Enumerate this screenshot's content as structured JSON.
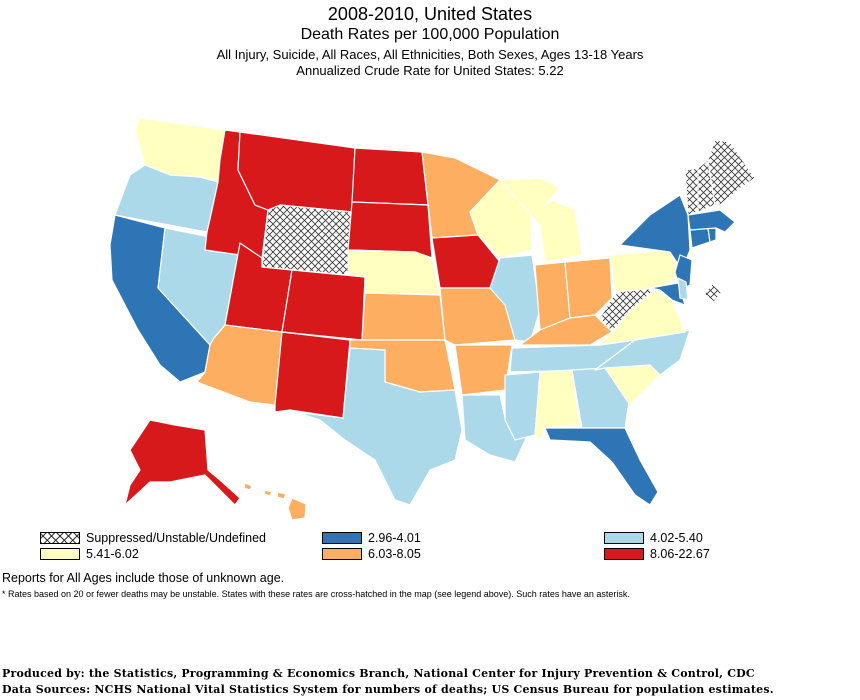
{
  "titles": {
    "line1": "2008-2010, United States",
    "line2": "Death Rates per 100,000 Population",
    "line3": "All Injury, Suicide, All Races, All Ethnicities, Both Sexes, Ages 13-18 Years",
    "line4": "Annualized Crude Rate for United States: 5.22"
  },
  "colors": {
    "suppressed": "hatched",
    "c1": "#2e75b6",
    "c2": "#abd9e9",
    "c3": "#ffffbf",
    "c4": "#fdae61",
    "c5": "#d7191c"
  },
  "legend": [
    {
      "label": "Suppressed/Unstable/Undefined",
      "class": "suppressed"
    },
    {
      "label": "2.96-4.01",
      "class": "c1"
    },
    {
      "label": "4.02-5.40",
      "class": "c2"
    },
    {
      "label": "5.41-6.02",
      "class": "c3"
    },
    {
      "label": "6.03-8.05",
      "class": "c4"
    },
    {
      "label": "8.06-22.67",
      "class": "c5"
    }
  ],
  "states": {
    "WA": "c3",
    "OR": "c2",
    "CA": "c1",
    "NV": "c2",
    "ID": "c5",
    "MT": "c5",
    "WY": "suppressed",
    "UT": "c5",
    "AZ": "c4",
    "CO": "c5",
    "NM": "c5",
    "ND": "c5",
    "SD": "c5",
    "NE": "c3",
    "KS": "c4",
    "OK": "c4",
    "TX": "c2",
    "MN": "c4",
    "IA": "c5",
    "MO": "c4",
    "AR": "c4",
    "LA": "c2",
    "WI": "c3",
    "IL": "c2",
    "MI": "c3",
    "IN": "c4",
    "OH": "c4",
    "KY": "c4",
    "TN": "c2",
    "MS": "c2",
    "AL": "c3",
    "GA": "c2",
    "FL": "c1",
    "SC": "c3",
    "NC": "c2",
    "VA": "c3",
    "WV": "suppressed",
    "PA": "c3",
    "NY": "c1",
    "NJ": "c1",
    "DE": "c2",
    "MD": "c1",
    "DC": "suppressed",
    "CT": "c1",
    "RI": "c1",
    "MA": "c1",
    "VT": "suppressed",
    "NH": "suppressed",
    "ME": "suppressed",
    "AK": "c5",
    "HI": "c4"
  },
  "notes": {
    "note1": "Reports for All Ages include those of unknown age.",
    "note2": "* Rates based on 20 or fewer deaths may be unstable.  States with these rates are cross-hatched in the map (see legend above). Such rates have an asterisk."
  },
  "credits": {
    "produced": "Produced by: the Statistics, Programming & Economics Branch, National Center for Injury Prevention & Control, CDC",
    "sources": "Data Sources: NCHS National Vital Statistics System for numbers of deaths; US Census Bureau for population estimates."
  }
}
